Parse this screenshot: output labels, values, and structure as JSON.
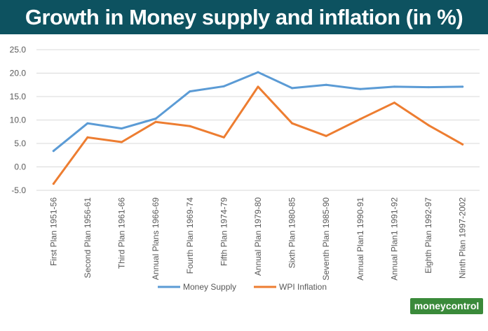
{
  "header": {
    "title": "Growth in Money supply and inflation (in %)"
  },
  "brand": {
    "logo_text": "moneycontrol"
  },
  "colors": {
    "banner": "#0d5260",
    "money_supply": "#5b9bd5",
    "wpi_inflation": "#ed7d31",
    "grid": "#d9d9d9",
    "logo": "#3a8a3a"
  },
  "chart_data": {
    "type": "line",
    "title": "Growth in Money supply and inflation (in %)",
    "xlabel": "",
    "ylabel": "",
    "ylim": [
      -5,
      25
    ],
    "yticks": [
      "25.0",
      "20.0",
      "15.0",
      "10.0",
      "5.0",
      "0.0",
      "-5.0"
    ],
    "grid": true,
    "legend_position": "bottom",
    "categories": [
      "First Plan 1951-56",
      "Second Plan 1956-61",
      "Third Plan 1961-66",
      "Annual Plans 1966-69",
      "Fourth Plan 1969-74",
      "Fifth Plan 1974-79",
      "Annual Plan 1979-80",
      "Sixth Plan 1980-85",
      "Seventh Plan 1985-90",
      "Annual Plan1 1990-91",
      "Annual Plan1 1991-92",
      "Eighth Plan 1992-97",
      "Ninth Plan 1997-2002"
    ],
    "series": [
      {
        "name": "Money Supply",
        "values": [
          3.4,
          9.3,
          8.2,
          10.3,
          16.1,
          17.2,
          20.2,
          16.8,
          17.5,
          16.6,
          17.1,
          17.0,
          17.1
        ]
      },
      {
        "name": "WPI Inflation",
        "values": [
          -3.6,
          6.3,
          5.3,
          9.6,
          8.7,
          6.3,
          17.1,
          9.3,
          6.6,
          10.2,
          13.7,
          8.9,
          4.8
        ]
      }
    ]
  }
}
